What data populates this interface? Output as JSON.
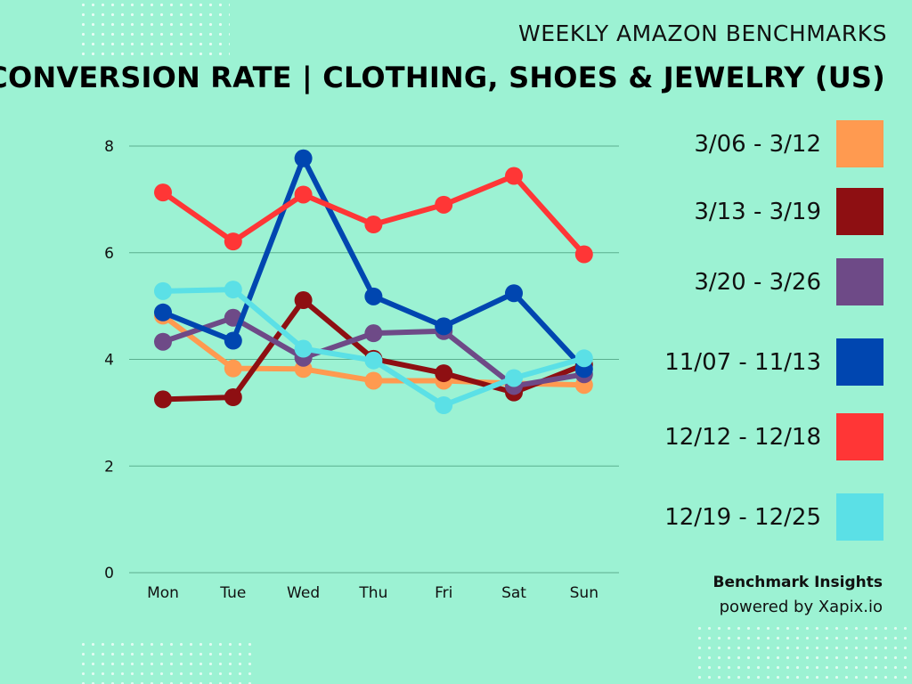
{
  "header": {
    "subtitle": "WEEKLY AMAZON BENCHMARKS",
    "title": "CONVERSION RATE | CLOTHING, SHOES & JEWELRY (US)"
  },
  "brand": {
    "line1": "Benchmark Insights",
    "line2": "powered by Xapix.io"
  },
  "colors": {
    "background": "#9CF2D3",
    "gridline": "#5BAF8F"
  },
  "chart_data": {
    "type": "line",
    "title": "CONVERSION RATE | CLOTHING, SHOES & JEWELRY (US)",
    "subtitle": "WEEKLY AMAZON BENCHMARKS",
    "xlabel": "",
    "ylabel": "",
    "categories": [
      "Mon",
      "Tue",
      "Wed",
      "Thu",
      "Fri",
      "Sat",
      "Sun"
    ],
    "ylim": [
      0,
      8
    ],
    "yticks": [
      0,
      2,
      4,
      6,
      8
    ],
    "grid": true,
    "legend_position": "right",
    "series": [
      {
        "name": "3/06 - 3/12",
        "color": "#FF9A50",
        "values": [
          4.82,
          3.83,
          3.82,
          3.6,
          3.6,
          3.55,
          3.52
        ]
      },
      {
        "name": "3/13 - 3/19",
        "color": "#8E0F12",
        "values": [
          3.25,
          3.29,
          5.11,
          4.01,
          3.74,
          3.38,
          3.9
        ]
      },
      {
        "name": "3/20 - 3/26",
        "color": "#6E4A87",
        "values": [
          4.33,
          4.78,
          4.03,
          4.49,
          4.53,
          3.5,
          3.72
        ]
      },
      {
        "name": "11/07 - 11/13",
        "color": "#0046B0",
        "values": [
          4.88,
          4.35,
          7.77,
          5.18,
          4.62,
          5.24,
          3.82
        ]
      },
      {
        "name": "12/12 - 12/18",
        "color": "#FF3636",
        "values": [
          7.13,
          6.21,
          7.09,
          6.53,
          6.9,
          7.44,
          5.97
        ]
      },
      {
        "name": "12/19 - 12/25",
        "color": "#5BE0E6",
        "values": [
          5.28,
          5.31,
          4.2,
          3.98,
          3.14,
          3.65,
          4.02
        ]
      }
    ]
  }
}
